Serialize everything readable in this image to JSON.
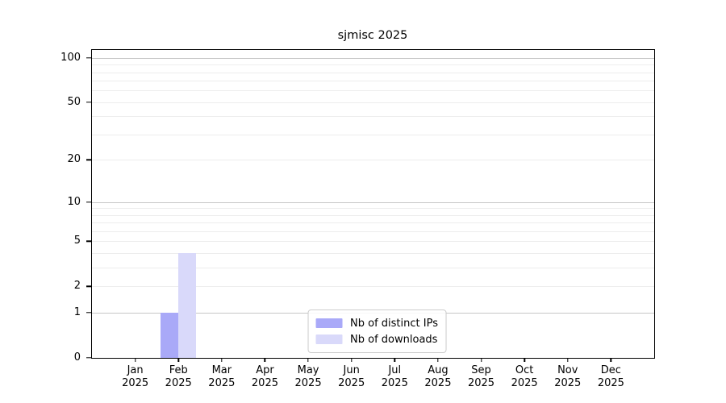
{
  "title": "sjmisc 2025",
  "chart_data": {
    "type": "bar",
    "title": "sjmisc 2025",
    "categories": [
      "Jan 2025",
      "Feb 2025",
      "Mar 2025",
      "Apr 2025",
      "May 2025",
      "Jun 2025",
      "Jul 2025",
      "Aug 2025",
      "Sep 2025",
      "Oct 2025",
      "Nov 2025",
      "Dec 2025"
    ],
    "series": [
      {
        "name": "Nb of distinct IPs",
        "color": "#a9a9f8",
        "values": [
          0,
          1,
          0,
          0,
          0,
          0,
          0,
          0,
          0,
          0,
          0,
          0
        ]
      },
      {
        "name": "Nb of downloads",
        "color": "#d9d9fa",
        "values": [
          0,
          4,
          0,
          0,
          0,
          0,
          0,
          0,
          0,
          0,
          0,
          0
        ]
      }
    ],
    "yscale": "log1p",
    "ylim": [
      0,
      113
    ],
    "yticks": [
      0,
      1,
      2,
      5,
      10,
      20,
      50,
      100
    ],
    "grid": {
      "major_values": [
        1,
        10,
        100
      ],
      "minor_values": [
        2,
        3,
        4,
        5,
        6,
        7,
        8,
        9,
        20,
        30,
        40,
        50,
        60,
        70,
        80,
        90
      ],
      "major_color": "#c6c6c6",
      "minor_color": "#ededed"
    },
    "legend_position": "lower center inside",
    "xlabel": "",
    "ylabel": ""
  },
  "colors": {
    "background": "#ffffff",
    "spine": "#000000",
    "legend_border": "#cccccc",
    "text": "#000000"
  }
}
